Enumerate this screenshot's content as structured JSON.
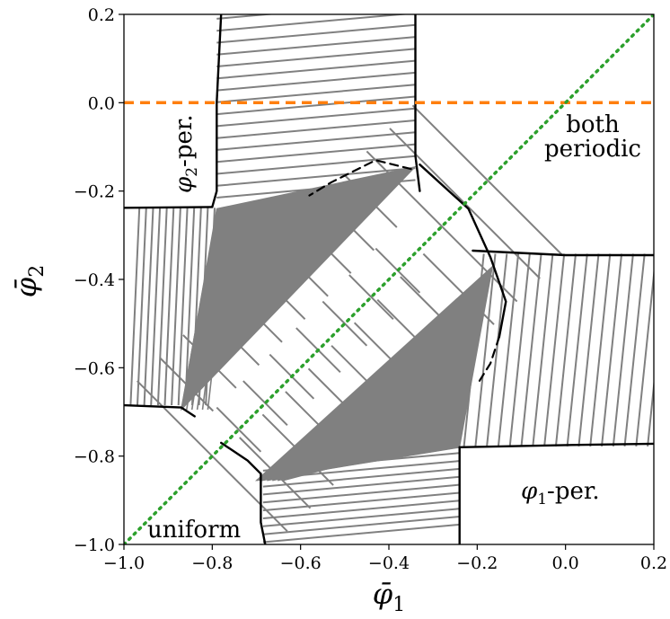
{
  "chart_data": {
    "type": "phase-diagram",
    "xlabel": "φ̄",
    "xlabel_sub": "1",
    "ylabel": "φ̄",
    "ylabel_sub": "2",
    "xlim": [
      -1.0,
      0.2
    ],
    "ylim": [
      -1.0,
      0.2
    ],
    "grid": false,
    "x_ticks": [
      "−1.0",
      "−0.8",
      "−0.6",
      "−0.4",
      "−0.2",
      "0.0",
      "0.2"
    ],
    "y_ticks": [
      "0.2",
      "0.0",
      "−0.2",
      "−0.4",
      "−0.6",
      "−0.8",
      "−1.0"
    ],
    "regions": {
      "phi2_periodic": "φ",
      "phi2_periodic_sub": "2",
      "phi2_periodic_suffix": "-per.",
      "phi1_periodic": "φ",
      "phi1_periodic_sub": "1",
      "phi1_periodic_suffix": "-per.",
      "both_periodic_line1": "both",
      "both_periodic_line2": "periodic",
      "uniform": "uniform"
    },
    "reference_lines": [
      {
        "kind": "horizontal",
        "y": 0.0,
        "color": "#ff7f0e",
        "style": "dashed"
      },
      {
        "kind": "diagonal",
        "from": [
          -1.0,
          -1.0
        ],
        "to": [
          0.2,
          0.2
        ],
        "color": "#2ca02c",
        "style": "dotted"
      }
    ],
    "colors": {
      "hatch": "#808080",
      "three_phase_fill": "#808080",
      "boundary": "#000000"
    },
    "boundaries": {
      "phi2_top_left": [
        [
          -0.78,
          0.2
        ],
        [
          -0.79,
          0.0
        ],
        [
          -0.79,
          -0.2
        ],
        [
          -0.8,
          -0.236
        ]
      ],
      "phi2_top_right": [
        [
          -0.34,
          0.2
        ],
        [
          -0.34,
          0.0
        ],
        [
          -0.34,
          -0.12
        ],
        [
          -0.33,
          -0.2
        ]
      ],
      "phi2_left_upper": [
        [
          -1.0,
          -0.238
        ],
        [
          -0.8,
          -0.236
        ]
      ],
      "phi2_left_lower": [
        [
          -1.0,
          -0.685
        ],
        [
          -0.87,
          -0.69
        ],
        [
          -0.84,
          -0.71
        ]
      ],
      "phi1_right_upper": [
        [
          -0.21,
          -0.335
        ],
        [
          0.0,
          -0.345
        ],
        [
          0.2,
          -0.345
        ]
      ],
      "phi1_right_lower": [
        [
          -0.24,
          -0.78
        ],
        [
          0.0,
          -0.775
        ],
        [
          0.2,
          -0.772
        ]
      ],
      "phi1_bottom_left": [
        [
          -0.69,
          -0.84
        ],
        [
          -0.69,
          -0.95
        ],
        [
          -0.68,
          -1.0
        ]
      ],
      "phi1_bottom_right": [
        [
          -0.24,
          -0.78
        ],
        [
          -0.24,
          -0.9
        ],
        [
          -0.24,
          -1.0
        ]
      ],
      "ellipse_solid": [
        [
          -0.33,
          -0.14
        ],
        [
          -0.22,
          -0.24
        ],
        [
          -0.17,
          -0.35
        ],
        [
          -0.135,
          -0.45
        ],
        [
          -0.15,
          -0.53
        ]
      ],
      "ellipse_dashed_upper": [
        [
          -0.35,
          -0.15
        ],
        [
          -0.43,
          -0.13
        ],
        [
          -0.53,
          -0.18
        ],
        [
          -0.58,
          -0.21
        ]
      ],
      "ellipse_solid_lower": [
        [
          -0.78,
          -0.77
        ],
        [
          -0.72,
          -0.81
        ],
        [
          -0.69,
          -0.84
        ]
      ],
      "ellipse_dashed_lower": [
        [
          -0.15,
          -0.53
        ],
        [
          -0.17,
          -0.59
        ],
        [
          -0.195,
          -0.63
        ]
      ]
    },
    "three_phase_triangles": [
      [
        [
          -0.79,
          -0.24
        ],
        [
          -0.34,
          -0.145
        ],
        [
          -0.87,
          -0.695
        ]
      ],
      [
        [
          -0.165,
          -0.37
        ],
        [
          -0.24,
          -0.78
        ],
        [
          -0.7,
          -0.855
        ]
      ]
    ]
  }
}
